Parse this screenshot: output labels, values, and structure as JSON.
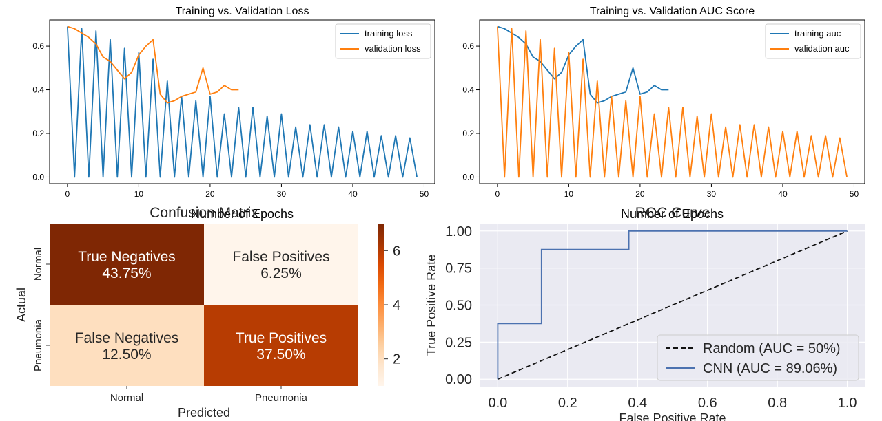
{
  "chart_data": [
    {
      "type": "line",
      "title": "Training vs. Validation Loss",
      "xlabel": "Number of Epochs",
      "ylabel": "",
      "xlim": [
        -2.5,
        51.5
      ],
      "ylim": [
        -0.03,
        0.72
      ],
      "xticks": [
        0,
        10,
        20,
        30,
        40,
        50
      ],
      "yticks": [
        0.0,
        0.2,
        0.4,
        0.6
      ],
      "grid": false,
      "legend_position": "top-right",
      "series": [
        {
          "name": "training loss",
          "color": "#1f77b4",
          "x": [
            0,
            1,
            2,
            3,
            4,
            5,
            6,
            7,
            8,
            9,
            10,
            11,
            12,
            13,
            14,
            15,
            16,
            17,
            18,
            19,
            20,
            21,
            22,
            23,
            24,
            25,
            26,
            27,
            28,
            29,
            30,
            31,
            32,
            33,
            34,
            35,
            36,
            37,
            38,
            39,
            40,
            41,
            42,
            43,
            44,
            45,
            46,
            47,
            48,
            49
          ],
          "y": [
            0.69,
            0.0,
            0.68,
            0.0,
            0.67,
            0.0,
            0.63,
            0.0,
            0.59,
            0.0,
            0.57,
            0.0,
            0.54,
            0.0,
            0.44,
            0.0,
            0.37,
            0.0,
            0.35,
            0.0,
            0.37,
            0.0,
            0.29,
            0.0,
            0.32,
            0.0,
            0.32,
            0.0,
            0.28,
            0.0,
            0.29,
            0.0,
            0.23,
            0.0,
            0.24,
            0.0,
            0.24,
            0.0,
            0.23,
            0.0,
            0.21,
            0.0,
            0.21,
            0.0,
            0.19,
            0.0,
            0.19,
            0.0,
            0.18,
            0.0
          ]
        },
        {
          "name": "validation loss",
          "color": "#ff7f0e",
          "x": [
            0,
            1,
            2,
            3,
            4,
            5,
            6,
            7,
            8,
            9,
            10,
            11,
            12,
            13,
            14,
            15,
            16,
            17,
            18,
            19,
            20,
            21,
            22,
            23,
            24
          ],
          "y": [
            0.69,
            0.68,
            0.66,
            0.64,
            0.61,
            0.55,
            0.53,
            0.49,
            0.45,
            0.48,
            0.56,
            0.6,
            0.63,
            0.38,
            0.34,
            0.35,
            0.37,
            0.38,
            0.39,
            0.5,
            0.38,
            0.39,
            0.42,
            0.4,
            0.4
          ]
        }
      ]
    },
    {
      "type": "line",
      "title": "Training vs. Validation AUC Score",
      "xlabel": "Number of Epochs",
      "ylabel": "",
      "xlim": [
        -2.5,
        51.5
      ],
      "ylim": [
        -0.03,
        0.72
      ],
      "xticks": [
        0,
        10,
        20,
        30,
        40,
        50
      ],
      "yticks": [
        0.0,
        0.2,
        0.4,
        0.6
      ],
      "grid": false,
      "legend_position": "top-right",
      "series": [
        {
          "name": "training auc",
          "color": "#1f77b4",
          "x": [
            0,
            1,
            2,
            3,
            4,
            5,
            6,
            7,
            8,
            9,
            10,
            11,
            12,
            13,
            14,
            15,
            16,
            17,
            18,
            19,
            20,
            21,
            22,
            23,
            24
          ],
          "y": [
            0.69,
            0.68,
            0.66,
            0.64,
            0.61,
            0.55,
            0.53,
            0.49,
            0.45,
            0.48,
            0.56,
            0.6,
            0.63,
            0.38,
            0.34,
            0.35,
            0.37,
            0.38,
            0.39,
            0.5,
            0.38,
            0.39,
            0.42,
            0.4,
            0.4
          ]
        },
        {
          "name": "validation auc",
          "color": "#ff7f0e",
          "x": [
            0,
            1,
            2,
            3,
            4,
            5,
            6,
            7,
            8,
            9,
            10,
            11,
            12,
            13,
            14,
            15,
            16,
            17,
            18,
            19,
            20,
            21,
            22,
            23,
            24,
            25,
            26,
            27,
            28,
            29,
            30,
            31,
            32,
            33,
            34,
            35,
            36,
            37,
            38,
            39,
            40,
            41,
            42,
            43,
            44,
            45,
            46,
            47,
            48,
            49
          ],
          "y": [
            0.69,
            0.0,
            0.68,
            0.0,
            0.67,
            0.0,
            0.63,
            0.0,
            0.59,
            0.0,
            0.57,
            0.0,
            0.54,
            0.0,
            0.44,
            0.0,
            0.37,
            0.0,
            0.35,
            0.0,
            0.37,
            0.0,
            0.29,
            0.0,
            0.32,
            0.0,
            0.32,
            0.0,
            0.28,
            0.0,
            0.29,
            0.0,
            0.23,
            0.0,
            0.24,
            0.0,
            0.24,
            0.0,
            0.23,
            0.0,
            0.21,
            0.0,
            0.21,
            0.0,
            0.19,
            0.0,
            0.19,
            0.0,
            0.18,
            0.0
          ]
        }
      ]
    },
    {
      "type": "heatmap",
      "title": "Confusion Matrix",
      "xlabel": "Predicted",
      "ylabel": "Actual",
      "x_categories": [
        "Normal",
        "Pneumonia"
      ],
      "y_categories": [
        "Normal",
        "Pneumonia"
      ],
      "values": [
        [
          7,
          1
        ],
        [
          2,
          6
        ]
      ],
      "cell_labels": [
        [
          "True Negatives",
          "False Positives"
        ],
        [
          "False Negatives",
          "True Positives"
        ]
      ],
      "cell_percents": [
        [
          "43.75%",
          "6.25%"
        ],
        [
          "12.50%",
          "37.50%"
        ]
      ],
      "colormap": "Oranges",
      "colorbar_range": [
        1,
        7
      ],
      "colorbar_ticks": [
        2,
        4,
        6
      ]
    },
    {
      "type": "line",
      "title": "ROC Curve",
      "xlabel": "False Positive Rate",
      "ylabel": "True Positive Rate",
      "xlim": [
        -0.05,
        1.05
      ],
      "ylim": [
        -0.05,
        1.05
      ],
      "xticks": [
        0.0,
        0.2,
        0.4,
        0.6,
        0.8,
        1.0
      ],
      "yticks": [
        0.0,
        0.25,
        0.5,
        0.75,
        1.0
      ],
      "grid": true,
      "legend_position": "lower-right",
      "series": [
        {
          "name": "Random (AUC = 50%)",
          "color": "#111111",
          "dashed": true,
          "x": [
            0,
            1
          ],
          "y": [
            0,
            1
          ]
        },
        {
          "name": "CNN (AUC = 89.06%)",
          "color": "#4c72b0",
          "dashed": false,
          "x": [
            0,
            0,
            0.125,
            0.125,
            0.375,
            0.375,
            1.0
          ],
          "y": [
            0,
            0.375,
            0.375,
            0.875,
            0.875,
            1.0,
            1.0
          ]
        }
      ]
    }
  ]
}
